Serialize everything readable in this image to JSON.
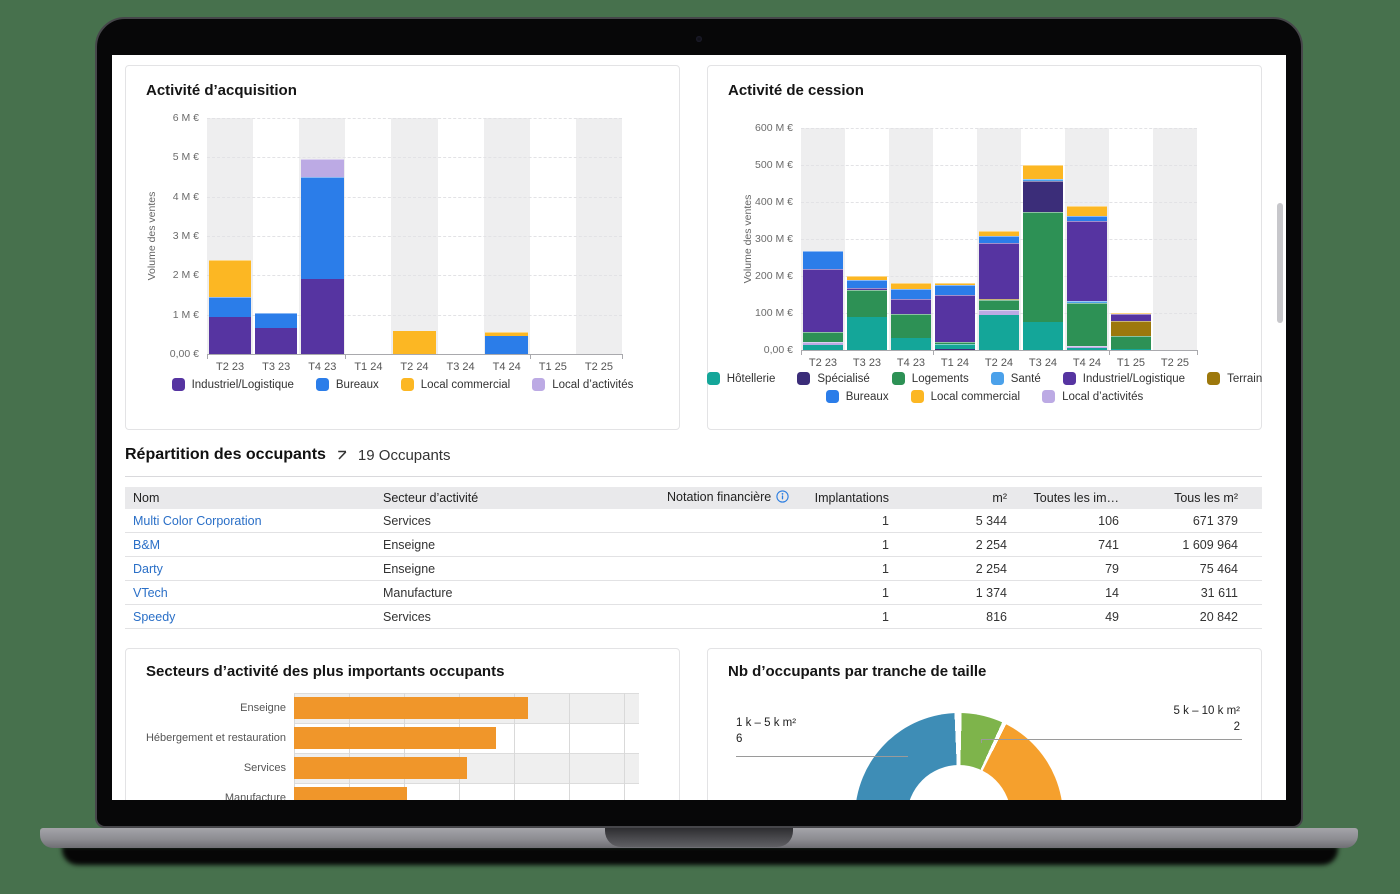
{
  "table": {
    "title": "Répartition des occupants",
    "count_label": "19 Occupants",
    "columns": [
      {
        "label": "Nom",
        "align": "left"
      },
      {
        "label": "Secteur d’activité",
        "align": "left"
      },
      {
        "label": "Notation financière",
        "align": "right",
        "info_icon": true
      },
      {
        "label": "Implantations",
        "align": "right"
      },
      {
        "label": "m²",
        "align": "right"
      },
      {
        "label": "Toutes les im…",
        "align": "right"
      },
      {
        "label": "Tous les m²",
        "align": "right"
      }
    ],
    "rows": [
      {
        "cells": [
          "Multi Color Corporation",
          "Services",
          "",
          "1",
          "5 344",
          "106",
          "671 379"
        ]
      },
      {
        "cells": [
          "B&M",
          "Enseigne",
          "",
          "1",
          "2 254",
          "741",
          "1 609 964"
        ]
      },
      {
        "cells": [
          "Darty",
          "Enseigne",
          "",
          "1",
          "2 254",
          "79",
          "75 464"
        ]
      },
      {
        "cells": [
          "VTech",
          "Manufacture",
          "",
          "1",
          "1 374",
          "14",
          "31 611"
        ]
      },
      {
        "cells": [
          "Speedy",
          "Services",
          "",
          "1",
          "816",
          "49",
          "20 842"
        ]
      }
    ],
    "link_color": "#2a6fc7"
  },
  "chart_data": [
    {
      "id": "acquisition",
      "type": "bar",
      "stacked": true,
      "title": "Activité d’acquisition",
      "ylabel": "Volume des ventes",
      "ymax": 6,
      "yticks": [
        "6 M €",
        "5 M €",
        "4 M €",
        "3 M €",
        "2 M €",
        "1 M €",
        "0,00 €"
      ],
      "categories": [
        "T2 23",
        "T3 23",
        "T4 23",
        "T1 24",
        "T2 24",
        "T3 24",
        "T4 24",
        "T1 25",
        "T2 25"
      ],
      "series": [
        {
          "name": "Industriel/Logistique",
          "color": "#5634a1"
        },
        {
          "name": "Bureaux",
          "color": "#2b7de9"
        },
        {
          "name": "Local commercial",
          "color": "#fcb723"
        },
        {
          "name": "Local d’activités",
          "color": "#bcaae4"
        }
      ],
      "bars": [
        [
          [
            "Industriel/Logistique",
            0.95
          ],
          [
            "Bureaux",
            0.5
          ],
          [
            "Local commercial",
            0.95
          ]
        ],
        [
          [
            "Industriel/Logistique",
            0.65
          ],
          [
            "Bureaux",
            0.4
          ]
        ],
        [
          [
            "Industriel/Logistique",
            1.9
          ],
          [
            "Bureaux",
            2.6
          ],
          [
            "Local d’activités",
            0.45
          ]
        ],
        [],
        [
          [
            "Local commercial",
            0.58
          ]
        ],
        [],
        [
          [
            "Bureaux",
            0.45
          ],
          [
            "Local commercial",
            0.12
          ]
        ],
        [],
        []
      ]
    },
    {
      "id": "cession",
      "type": "bar",
      "stacked": true,
      "title": "Activité de cession",
      "ylabel": "Volume des ventes",
      "ymax": 600,
      "yticks": [
        "600 M €",
        "500 M €",
        "400 M €",
        "300 M €",
        "200 M €",
        "100 M €",
        "0,00 €"
      ],
      "categories": [
        "T2 23",
        "T3 23",
        "T4 23",
        "T1 24",
        "T2 24",
        "T3 24",
        "T4 24",
        "T1 25",
        "T2 25"
      ],
      "series": [
        {
          "name": "Hôtellerie",
          "color": "#14a699"
        },
        {
          "name": "Spécialisé",
          "color": "#3b2d79"
        },
        {
          "name": "Logements",
          "color": "#2d9155"
        },
        {
          "name": "Santé",
          "color": "#4ba1ea"
        },
        {
          "name": "Industriel/Logistique",
          "color": "#5634a1"
        },
        {
          "name": "Terrain",
          "color": "#9d780c"
        },
        {
          "name": "Bureaux",
          "color": "#2b7de9"
        },
        {
          "name": "Local commercial",
          "color": "#fcb723"
        },
        {
          "name": "Local d’activités",
          "color": "#bcaae4"
        }
      ],
      "bars": [
        [
          [
            "Hôtellerie",
            13
          ],
          [
            "Local d’activités",
            9
          ],
          [
            "Logements",
            26
          ],
          [
            "Industriel/Logistique",
            170
          ],
          [
            "Bureaux",
            50
          ]
        ],
        [
          [
            "Hôtellerie",
            90
          ],
          [
            "Logements",
            72
          ],
          [
            "Industriel/Logistique",
            5
          ],
          [
            "Bureaux",
            22
          ],
          [
            "Local commercial",
            12
          ]
        ],
        [
          [
            "Hôtellerie",
            33
          ],
          [
            "Logements",
            64
          ],
          [
            "Industriel/Logistique",
            40
          ],
          [
            "Bureaux",
            27
          ],
          [
            "Local commercial",
            16
          ]
        ],
        [
          [
            "Spécialisé",
            4
          ],
          [
            "Hôtellerie",
            11
          ],
          [
            "Logements",
            6
          ],
          [
            "Industriel/Logistique",
            128
          ],
          [
            "Bureaux",
            26
          ],
          [
            "Local commercial",
            6
          ]
        ],
        [
          [
            "Hôtellerie",
            95
          ],
          [
            "Local d’activités",
            13
          ],
          [
            "Logements",
            27
          ],
          [
            "Terrain",
            3
          ],
          [
            "Industriel/Logistique",
            150
          ],
          [
            "Bureaux",
            20
          ],
          [
            "Local commercial",
            15
          ]
        ],
        [
          [
            "Hôtellerie",
            75
          ],
          [
            "Logements",
            297
          ],
          [
            "Spécialisé",
            86
          ],
          [
            "Santé",
            5
          ],
          [
            "Local commercial",
            37
          ]
        ],
        [
          [
            "Hôtellerie",
            5
          ],
          [
            "Local d’activités",
            7
          ],
          [
            "Logements",
            114
          ],
          [
            "Santé",
            6
          ],
          [
            "Industriel/Logistique",
            216
          ],
          [
            "Bureaux",
            14
          ],
          [
            "Local commercial",
            27
          ]
        ],
        [
          [
            "Hôtellerie",
            4
          ],
          [
            "Logements",
            34
          ],
          [
            "Terrain",
            40
          ],
          [
            "Industriel/Logistique",
            20
          ],
          [
            "Local commercial",
            3
          ]
        ],
        []
      ]
    },
    {
      "id": "sectors",
      "type": "bar",
      "orientation": "horizontal",
      "title": "Secteurs d’activité des plus importants occupants",
      "categories": [
        "Enseigne",
        "Hébergement et restauration",
        "Services",
        "Manufacture"
      ],
      "values": [
        4.25,
        3.67,
        3.15,
        2.06
      ],
      "xmax": 6.27,
      "grid_step": 1,
      "color": "#f0962a"
    },
    {
      "id": "sizes",
      "type": "pie",
      "title": "Nb d’occupants par tranche de taille",
      "slices": [
        {
          "label": "1 k – 5 k m²",
          "value": 6,
          "color": "#3e8db6",
          "start": 178,
          "end": 357.5
        },
        {
          "label": "5 k – 10 k m²",
          "value": 2,
          "color": "#7eb44b",
          "start": 1.5,
          "end": 24.5
        },
        {
          "label": "",
          "value": null,
          "color": "#f5a02d",
          "start": 27,
          "end": 178
        }
      ],
      "callouts": [
        {
          "side": "left",
          "label": "1 k – 5 k m²",
          "value": "6"
        },
        {
          "side": "right",
          "label": "5 k – 10 k m²",
          "value": "2"
        }
      ]
    }
  ]
}
